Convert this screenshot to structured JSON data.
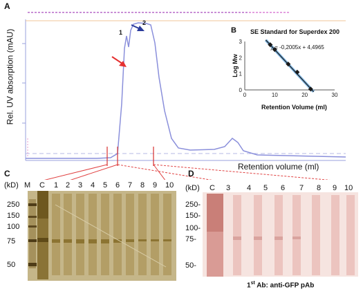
{
  "panel_a": {
    "label": "A",
    "ylabel": "Rel. UV absorption (mAU)",
    "xlabel": "Retention volume (ml)",
    "peak_label_1": "1",
    "peak_label_2": "2"
  },
  "panel_b": {
    "label": "B",
    "title": "SE Standard for Superdex 200",
    "ylabel": "Log Mw",
    "xlabel": "Retention Volume (ml)",
    "equation": "y = -0,2005x + 4,4965",
    "x_ticks": [
      "0",
      "10",
      "20",
      "30"
    ],
    "y_ticks": [
      "0",
      "1",
      "2",
      "3"
    ]
  },
  "panel_c": {
    "label": "C",
    "kd": "(kD)",
    "lanes": [
      "M",
      "C",
      "1",
      "2",
      "3",
      "4",
      "5",
      "6",
      "7",
      "8",
      "9",
      "10"
    ],
    "markers": [
      "250",
      "150",
      "100",
      "75",
      "50"
    ]
  },
  "panel_d": {
    "label": "D",
    "kd": "(kD)",
    "lanes": [
      "C",
      "3",
      "4",
      "5",
      "6",
      "7",
      "8",
      "9",
      "10"
    ],
    "markers": [
      "250-",
      "150-",
      "100-",
      "75-",
      "50-"
    ],
    "caption_pre": "1",
    "caption_sup": "st",
    "caption_post": " Ab: anti-GFP pAb"
  },
  "chart_data": {
    "type": "scatter",
    "title": "SE Standard for Superdex 200",
    "xlabel": "Retention Volume (ml)",
    "ylabel": "Log Mw",
    "xlim": [
      0,
      30
    ],
    "ylim": [
      0,
      3
    ],
    "series": [
      {
        "x": [
          8.5,
          10.0,
          14.5,
          17.5,
          22.0
        ],
        "y": [
          2.8,
          2.5,
          1.6,
          1.1,
          0.05
        ]
      }
    ],
    "trendline": {
      "slope": -0.2005,
      "intercept": 4.4965
    }
  },
  "colors": {
    "trace": "#8a8fdb",
    "arrow_red": "#e53030",
    "arrow_blue": "#2a3a9a",
    "gel_silver": "#cdbf93",
    "gel_western": "#f6e4e0"
  }
}
